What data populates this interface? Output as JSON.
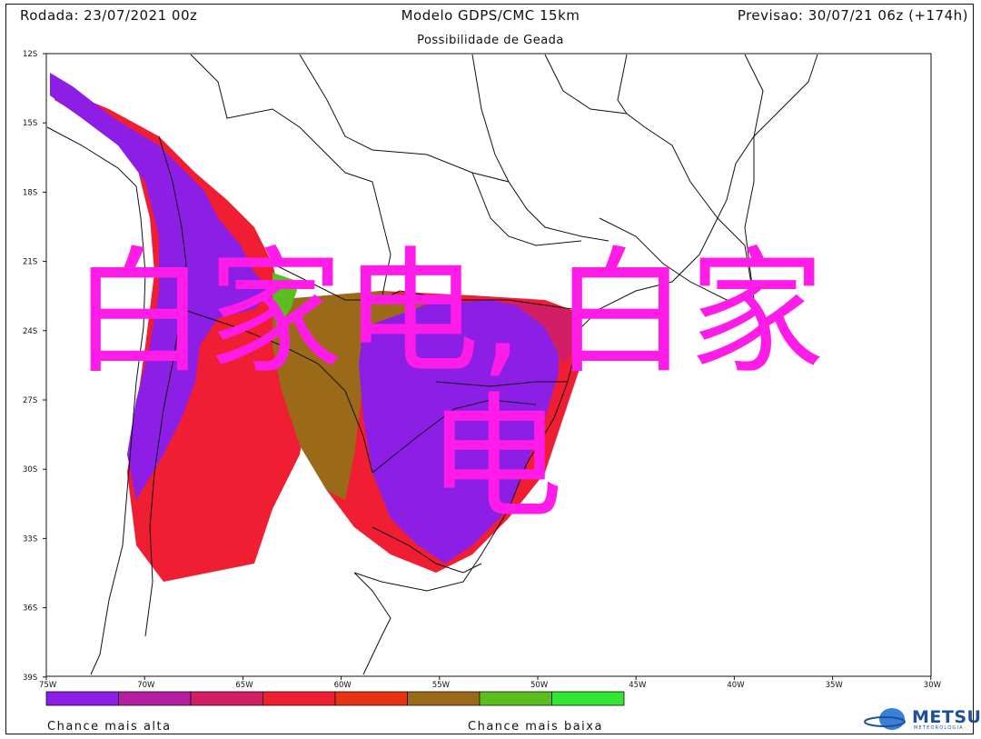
{
  "header": {
    "left": "Rodada: 23/07/2021 00z",
    "center": "Modelo GDPS/CMC 15km",
    "right": "Previsao: 30/07/21 06z (+174h)"
  },
  "subtitle": "Possibilidade de Geada",
  "lat_labels": [
    "12S",
    "15S",
    "18S",
    "21S",
    "24S",
    "27S",
    "30S",
    "33S",
    "36S",
    "39S"
  ],
  "lon_labels": [
    "75W",
    "70W",
    "65W",
    "60W",
    "55W",
    "50W",
    "45W",
    "40W",
    "35W",
    "30W"
  ],
  "legend": {
    "left_label": "Chance mais alta",
    "right_label": "Chance mais baixa",
    "colors": [
      "#8c1ee6",
      "#b41ea0",
      "#d21e64",
      "#f01e32",
      "#e83214",
      "#9a6a18",
      "#5abe1e",
      "#32e632"
    ]
  },
  "brand": {
    "name": "METSUL",
    "tagline": "METEOROLOGIA"
  },
  "overlay_text": {
    "chars": [
      "白",
      "家",
      "电",
      ",",
      "白",
      "家",
      "电"
    ],
    "color": "#ff1ce8"
  }
}
